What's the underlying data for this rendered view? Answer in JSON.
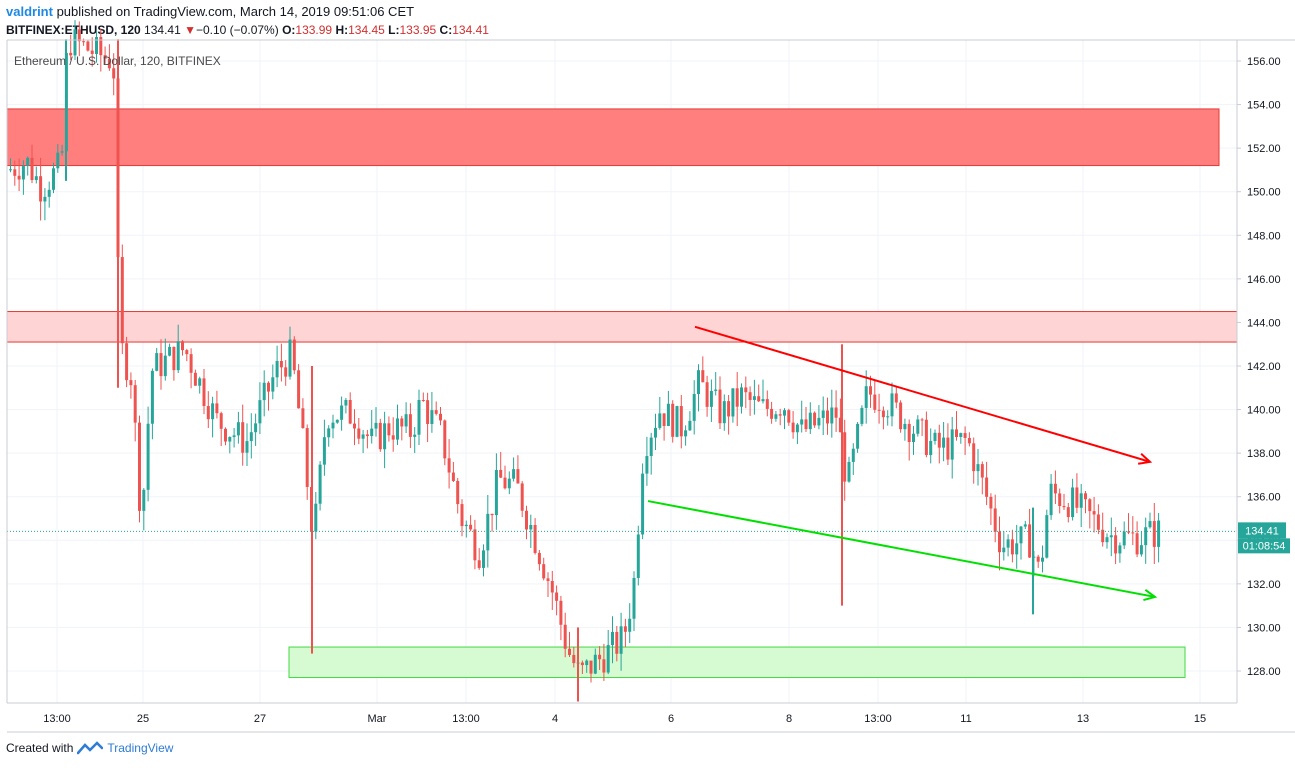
{
  "header": {
    "username": "valdrint",
    "published_text": " published on TradingView.com, March 14, 2019 09:51:06 CET",
    "symbol": "BITFINEX:ETHUSD, 120",
    "last_price": "134.41",
    "change_arrow": "▼",
    "change_text": "−0.10 (−0.07%)",
    "o_label": "O:",
    "o_value": "133.99",
    "h_label": "H:",
    "h_value": "134.45",
    "l_label": "L:",
    "l_value": "133.95",
    "c_label": "C:",
    "c_value": "134.41"
  },
  "footer": {
    "created_with": "Created with",
    "brand": "TradingView"
  },
  "colors": {
    "up": "#26a69a",
    "down": "#ef5350",
    "resistance_fill": "#ff7f7f",
    "resistance2_fill": "#ffd4d4",
    "support_fill": "#d6fbd2",
    "red_line": "#ff0000",
    "green_line": "#00e000",
    "price_tag": "#26a69a"
  },
  "chart_data": {
    "type": "candlestick",
    "title": "Ethereum / U.S. Dollar, 120, BITFINEX",
    "ylim": [
      126.5,
      157.0
    ],
    "y_ticks": [
      "156.00",
      "154.00",
      "152.00",
      "150.00",
      "148.00",
      "146.00",
      "144.00",
      "142.00",
      "140.00",
      "138.00",
      "136.00",
      "134.00",
      "132.00",
      "130.00",
      "128.00"
    ],
    "x_ticks": [
      "13:00",
      "25",
      "27",
      "Mar",
      "13:00",
      "4",
      "6",
      "8",
      "13:00",
      "11",
      "13",
      "15"
    ],
    "last_price_label": "134.41",
    "countdown_label": "01:08:54",
    "zones": [
      {
        "name": "upper-resistance-zone",
        "y_low": 151.2,
        "y_high": 153.8
      },
      {
        "name": "mid-resistance-zone",
        "y_low": 143.1,
        "y_high": 144.5
      },
      {
        "name": "support-zone",
        "y_low": 127.7,
        "y_high": 129.1
      }
    ],
    "trendlines": [
      {
        "name": "upper-trendline",
        "color": "red",
        "from": [
          "Mar 6 10:00",
          143.8
        ],
        "to": [
          "Mar 14 10:00",
          137.6
        ]
      },
      {
        "name": "lower-trendline",
        "color": "green",
        "from": [
          "Mar 5 12:00",
          135.8
        ],
        "to": [
          "Mar 14 10:00",
          131.4
        ]
      }
    ],
    "last_price": 134.41
  }
}
